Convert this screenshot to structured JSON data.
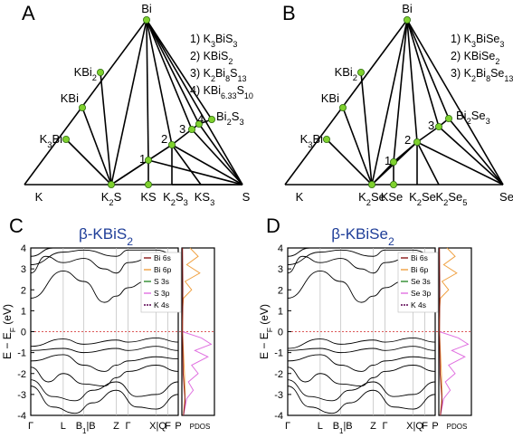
{
  "panels": {
    "A": {
      "letter": "A",
      "list": [
        {
          "n": "1) ",
          "parts": [
            [
              "K",
              ""
            ],
            [
              "3",
              "sub"
            ],
            [
              "BiS",
              ""
            ],
            [
              "3",
              "sub"
            ]
          ]
        },
        {
          "n": "2) ",
          "parts": [
            [
              "KBiS",
              ""
            ],
            [
              "2",
              "sub"
            ]
          ]
        },
        {
          "n": "3) ",
          "parts": [
            [
              "K",
              ""
            ],
            [
              "2",
              "sub"
            ],
            [
              "Bi",
              ""
            ],
            [
              "8",
              "sub"
            ],
            [
              "S",
              ""
            ],
            [
              "13",
              "sub"
            ]
          ]
        },
        {
          "n": "4) ",
          "parts": [
            [
              "KBi",
              ""
            ],
            [
              "6.33",
              "sub"
            ],
            [
              "S",
              ""
            ],
            [
              "10",
              "sub"
            ]
          ]
        }
      ],
      "vertices": {
        "top": [
          [
            "Bi",
            ""
          ]
        ],
        "kbi2": [
          [
            "KBi",
            ""
          ],
          [
            "2",
            "sub"
          ]
        ],
        "kbi": [
          [
            "KBi",
            ""
          ]
        ],
        "k3bi": [
          [
            "K",
            ""
          ],
          [
            "3",
            "sub"
          ],
          [
            "Bi",
            ""
          ]
        ],
        "left": [
          [
            "K",
            ""
          ]
        ],
        "right": [
          [
            "S",
            ""
          ]
        ],
        "k2x": [
          [
            "K",
            ""
          ],
          [
            "2",
            "sub"
          ],
          [
            "S",
            ""
          ]
        ],
        "kx": [
          [
            "KS",
            ""
          ]
        ],
        "k2x3": [
          [
            "K",
            ""
          ],
          [
            "2",
            "sub"
          ],
          [
            "S",
            ""
          ],
          [
            "3",
            "sub"
          ]
        ],
        "kx3": [
          [
            "KS",
            ""
          ],
          [
            "3",
            "sub"
          ]
        ],
        "bi2x3": [
          [
            "Bi",
            ""
          ],
          [
            "2",
            "sub"
          ],
          [
            "S",
            ""
          ],
          [
            "3",
            "sub"
          ]
        ]
      },
      "numbers": [
        "1",
        "2",
        "3",
        "4"
      ]
    },
    "B": {
      "letter": "B",
      "list": [
        {
          "n": "1) ",
          "parts": [
            [
              "K",
              ""
            ],
            [
              "3",
              "sub"
            ],
            [
              "BiSe",
              ""
            ],
            [
              "3",
              "sub"
            ]
          ]
        },
        {
          "n": "2) ",
          "parts": [
            [
              "KBiSe",
              ""
            ],
            [
              "2",
              "sub"
            ]
          ]
        },
        {
          "n": "3) ",
          "parts": [
            [
              "K",
              ""
            ],
            [
              "2",
              "sub"
            ],
            [
              "Bi",
              ""
            ],
            [
              "8",
              "sub"
            ],
            [
              "Se",
              ""
            ],
            [
              "13",
              "sub"
            ]
          ]
        }
      ],
      "vertices": {
        "top": [
          [
            "Bi",
            ""
          ]
        ],
        "kbi2": [
          [
            "KBi",
            ""
          ],
          [
            "2",
            "sub"
          ]
        ],
        "kbi": [
          [
            "KBi",
            ""
          ]
        ],
        "k3bi": [
          [
            "K",
            ""
          ],
          [
            "3",
            "sub"
          ],
          [
            "Bi",
            ""
          ]
        ],
        "left": [
          [
            "K",
            ""
          ]
        ],
        "right": [
          [
            "Se",
            ""
          ]
        ],
        "k2x": [
          [
            "K",
            ""
          ],
          [
            "2",
            "sub"
          ],
          [
            "Se",
            ""
          ]
        ],
        "kx": [
          [
            "KSe",
            ""
          ]
        ],
        "k2x2": [
          [
            "K",
            ""
          ],
          [
            "2",
            "sub"
          ],
          [
            "Se",
            ""
          ]
        ],
        "k2x5": [
          [
            "K",
            ""
          ],
          [
            "2",
            "sub"
          ],
          [
            "Se",
            ""
          ],
          [
            "5",
            "sub"
          ]
        ],
        "bi2x3": [
          [
            "Bi",
            ""
          ],
          [
            "2",
            "sub"
          ],
          [
            "Se",
            ""
          ],
          [
            "3",
            "sub"
          ]
        ]
      },
      "numbers": [
        "1",
        "2",
        "3"
      ]
    },
    "C": {
      "letter": "C",
      "title": [
        [
          "β-KBiS",
          ""
        ],
        [
          "2",
          "sub"
        ]
      ],
      "ylabel": [
        [
          "E − E",
          ""
        ],
        [
          "F",
          "sub"
        ],
        [
          " (eV)",
          ""
        ]
      ],
      "legend": [
        "Bi 6s",
        "Bi 6p",
        "S 3s",
        "S 3p",
        "K 4s"
      ]
    },
    "D": {
      "letter": "D",
      "title": [
        [
          "β-KBiSe",
          ""
        ],
        [
          "2",
          "sub"
        ]
      ],
      "ylabel": [
        [
          "E − E",
          ""
        ],
        [
          "F",
          "sub"
        ],
        [
          " (eV)",
          ""
        ]
      ],
      "legend": [
        "Bi 6s",
        "Bi 6p",
        "Se 3s",
        "Se 3p",
        "K 4s"
      ]
    }
  },
  "band_axis": {
    "yticks": [
      "4",
      "3",
      "2",
      "1",
      "0",
      "-1",
      "-2",
      "-3",
      "-4"
    ],
    "ymin": -4,
    "ymax": 4,
    "kpoints": [
      {
        "parts": [
          [
            "Γ",
            ""
          ]
        ]
      },
      {
        "parts": [
          [
            "L",
            ""
          ]
        ]
      },
      {
        "parts": [
          [
            "B",
            ""
          ],
          [
            "1",
            "sub"
          ],
          [
            "|B",
            ""
          ]
        ]
      },
      {
        "parts": [
          [
            "Z",
            ""
          ]
        ]
      },
      {
        "parts": [
          [
            "Γ",
            ""
          ]
        ]
      },
      {
        "parts": [
          [
            "X|Q",
            ""
          ]
        ]
      },
      {
        "parts": [
          [
            "F",
            ""
          ]
        ]
      },
      {
        "parts": [
          [
            "P",
            ""
          ]
        ]
      }
    ],
    "pdos_label": "PDOS"
  },
  "colors": {
    "bi6s": "#8b1a1a",
    "bi6p": "#f0a040",
    "x3s": "#2e8b2e",
    "x3p": "#e070e0",
    "k4s": "#5a0050",
    "node": "#7fd12e",
    "title": "#1f3e98",
    "fermi": "#d02020"
  }
}
